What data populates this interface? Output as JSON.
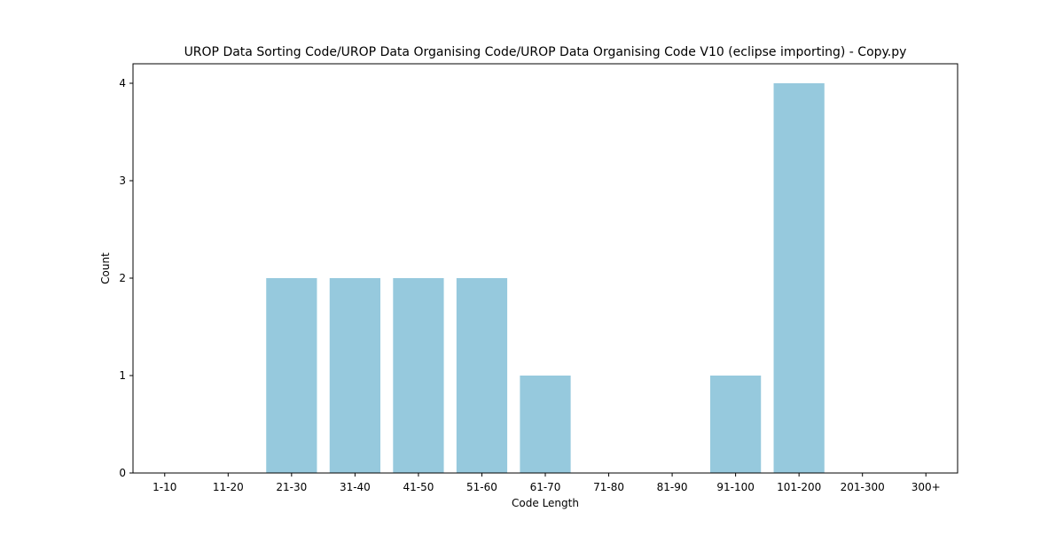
{
  "chart_data": {
    "type": "bar",
    "title": "UROP Data Sorting Code/UROP Data Organising Code/UROP Data Organising Code V10 (eclipse importing) - Copy.py",
    "xlabel": "Code Length",
    "ylabel": "Count",
    "categories": [
      "1-10",
      "11-20",
      "21-30",
      "31-40",
      "41-50",
      "51-60",
      "61-70",
      "71-80",
      "81-90",
      "91-100",
      "101-200",
      "201-300",
      "300+"
    ],
    "values": [
      0,
      0,
      2,
      2,
      2,
      2,
      1,
      0,
      0,
      1,
      4,
      0,
      0
    ],
    "ylim": [
      0,
      4.2
    ],
    "yticks": [
      0,
      1,
      2,
      3,
      4
    ],
    "bar_color": "#96c9dd",
    "grid": false,
    "legend": "none"
  }
}
